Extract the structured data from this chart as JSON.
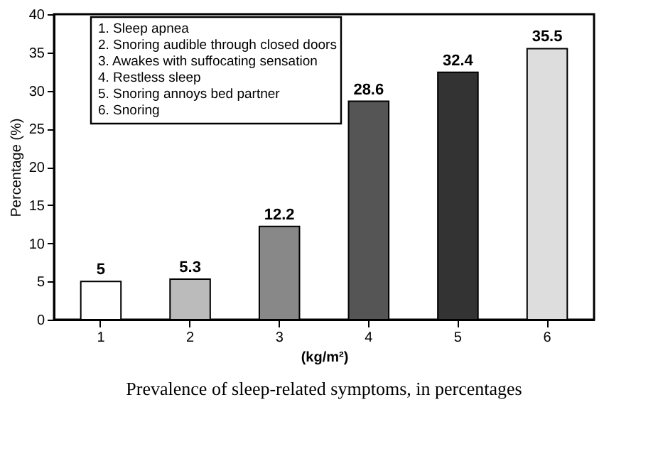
{
  "chart_data": {
    "type": "bar",
    "xlabel": "(kg/m²)",
    "ylabel": "Percentage (%)",
    "categories": [
      "1",
      "2",
      "3",
      "4",
      "5",
      "6"
    ],
    "values": [
      5,
      5.3,
      12.2,
      28.6,
      32.4,
      35.5
    ],
    "colors": [
      "#ffffff",
      "#bbbbbb",
      "#888888",
      "#555555",
      "#333333",
      "#dddddd"
    ],
    "ylim": [
      0,
      40
    ],
    "yticks": [
      0,
      5,
      10,
      15,
      20,
      25,
      30,
      35,
      40
    ],
    "grid": false,
    "data_labels": true,
    "annotations": [
      "1. Sleep apnea",
      "2. Snoring audible through closed doors",
      "3. Awakes with suffocating sensation",
      "4. Restless sleep",
      "5. Snoring annoys bed partner",
      "6. Snoring",
      "Prevalence of sleep-related symptoms, in percentages"
    ]
  }
}
